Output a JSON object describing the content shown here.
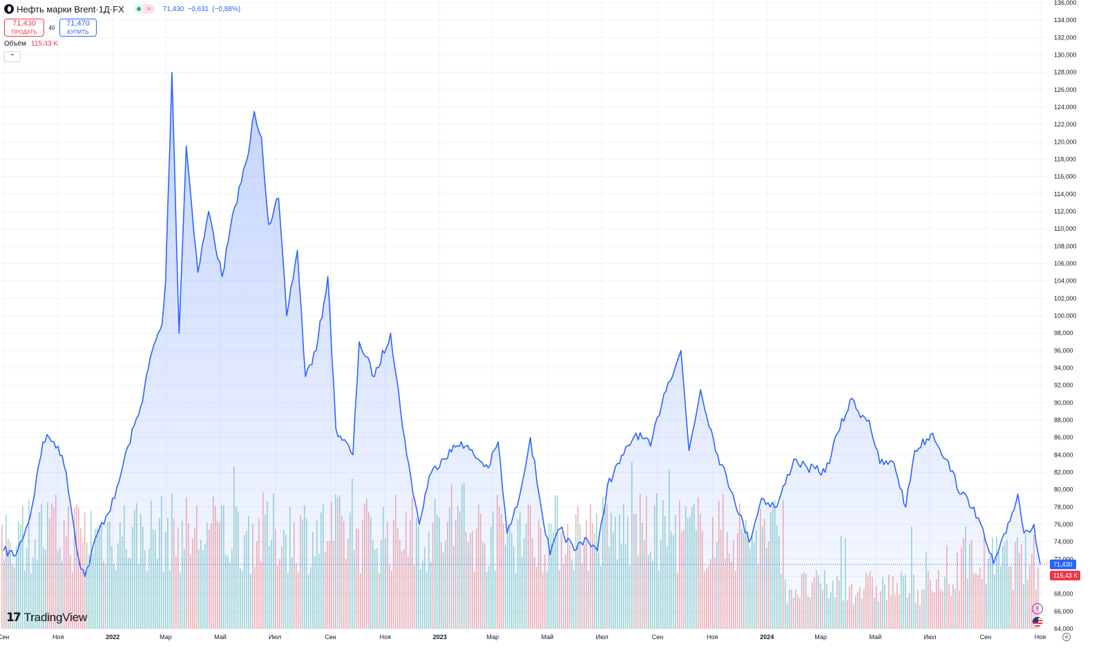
{
  "symbol": {
    "name": "Нефть марки Brent",
    "interval": "1Д",
    "exchange": "FX",
    "title_sep": " · ",
    "last": "71,430",
    "change": "−0,631",
    "change_pct": "(−0,88%)",
    "pill_label": "≈"
  },
  "trade": {
    "sell_price": "71,430",
    "sell_label": "ПРОДАТЬ",
    "spread": "40",
    "buy_price": "71,470",
    "buy_label": "КУПИТЬ"
  },
  "volume_legend": {
    "label": "Объём",
    "value": "115,43 K"
  },
  "branding": {
    "logo_text": "TradingView"
  },
  "icons": [
    "circle-logo-icon",
    "chevron-up-icon",
    "lightning-icon",
    "us-flag-icon",
    "settings-icon"
  ],
  "colors": {
    "line": "#2962ff",
    "area_top": "#c7d6fb",
    "up_volume": "#26a69a",
    "down_volume": "#ef5350",
    "price_tag": "#2962ff",
    "volume_tag": "#f23645",
    "grid": "#f0f3fa"
  },
  "chart_data": {
    "type": "area",
    "series": [
      {
        "name": "Нефть марки Brent",
        "x": [
          "2021-09-01",
          "2021-09-15",
          "2021-10-01",
          "2021-10-15",
          "2021-10-22",
          "2021-11-01",
          "2021-11-10",
          "2021-11-24",
          "2021-12-01",
          "2021-12-15",
          "2022-01-03",
          "2022-01-18",
          "2022-02-01",
          "2022-02-14",
          "2022-02-25",
          "2022-03-01",
          "2022-03-08",
          "2022-03-16",
          "2022-03-24",
          "2022-04-06",
          "2022-04-18",
          "2022-05-03",
          "2022-05-17",
          "2022-06-01",
          "2022-06-08",
          "2022-06-16",
          "2022-06-24",
          "2022-07-05",
          "2022-07-14",
          "2022-07-26",
          "2022-08-04",
          "2022-08-16",
          "2022-08-29",
          "2022-09-07",
          "2022-09-26",
          "2022-10-03",
          "2022-10-20",
          "2022-11-07",
          "2022-11-25",
          "2022-12-09",
          "2022-12-20",
          "2023-01-03",
          "2023-01-25",
          "2023-02-08",
          "2023-02-24",
          "2023-03-07",
          "2023-03-17",
          "2023-03-28",
          "2023-04-12",
          "2023-04-24",
          "2023-05-04",
          "2023-05-15",
          "2023-05-31",
          "2023-06-12",
          "2023-06-26",
          "2023-07-07",
          "2023-07-25",
          "2023-08-08",
          "2023-08-24",
          "2023-09-08",
          "2023-09-27",
          "2023-10-06",
          "2023-10-19",
          "2023-11-07",
          "2023-11-24",
          "2023-12-12",
          "2023-12-26",
          "2024-01-12",
          "2024-01-31",
          "2024-02-15",
          "2024-03-06",
          "2024-03-20",
          "2024-04-05",
          "2024-04-12",
          "2024-04-24",
          "2024-05-06",
          "2024-05-22",
          "2024-06-04",
          "2024-06-14",
          "2024-07-04",
          "2024-07-19",
          "2024-08-05",
          "2024-08-19",
          "2024-09-03",
          "2024-09-10",
          "2024-09-24",
          "2024-10-07",
          "2024-10-14",
          "2024-10-25",
          "2024-11-01"
        ],
        "y": [
          73.0,
          72.5,
          77.0,
          85.5,
          86.0,
          85.0,
          82.0,
          72.0,
          70.0,
          75.0,
          79.0,
          85.0,
          89.5,
          96.0,
          99.0,
          104.0,
          128.0,
          98.0,
          119.5,
          105.0,
          112.0,
          104.5,
          112.5,
          118.5,
          123.5,
          120.5,
          110.5,
          113.5,
          100.0,
          107.5,
          93.0,
          96.0,
          104.5,
          87.0,
          84.0,
          97.0,
          93.0,
          98.0,
          84.0,
          76.0,
          81.5,
          83.5,
          85.5,
          84.0,
          82.5,
          85.5,
          75.0,
          78.0,
          86.0,
          78.0,
          72.5,
          75.5,
          73.0,
          74.5,
          73.0,
          80.5,
          84.0,
          86.5,
          85.0,
          91.0,
          96.0,
          84.5,
          91.5,
          84.0,
          79.5,
          74.0,
          79.0,
          78.0,
          83.5,
          82.5,
          82.0,
          86.5,
          90.5,
          89.0,
          88.0,
          83.0,
          83.0,
          78.0,
          84.5,
          86.5,
          83.5,
          79.5,
          78.0,
          73.5,
          71.5,
          75.0,
          79.5,
          75.0,
          76.0,
          71.4
        ]
      }
    ],
    "volume_series": {
      "name": "Объём",
      "approx_range": [
        35000,
        205000
      ],
      "last": "115,43 K"
    },
    "x_ticks": [
      "Сен",
      "Ноя",
      "2022",
      "Мар",
      "Май",
      "Июл",
      "Сен",
      "Ноя",
      "2023",
      "Мар",
      "Май",
      "Июл",
      "Сен",
      "Ноя",
      "2024",
      "Мар",
      "Май",
      "Июл",
      "Сен",
      "Ноя"
    ],
    "x_tick_dates": [
      "2021-09-01",
      "2021-11-01",
      "2022-01-01",
      "2022-03-01",
      "2022-05-01",
      "2022-07-01",
      "2022-09-01",
      "2022-11-01",
      "2023-01-01",
      "2023-03-01",
      "2023-05-01",
      "2023-07-01",
      "2023-09-01",
      "2023-11-01",
      "2024-01-01",
      "2024-03-01",
      "2024-05-01",
      "2024-07-01",
      "2024-09-01",
      "2024-11-01"
    ],
    "y_ticks": [
      "64,000",
      "66,000",
      "68,000",
      "70,000",
      "72,000",
      "74,000",
      "76,000",
      "78,000",
      "80,000",
      "82,000",
      "84,000",
      "86,000",
      "88,000",
      "90,000",
      "92,000",
      "94,000",
      "96,000",
      "98,000",
      "100,000",
      "102,000",
      "104,000",
      "106,000",
      "108,000",
      "110,000",
      "112,000",
      "114,000",
      "116,000",
      "118,000",
      "120,000",
      "122,000",
      "124,000",
      "126,000",
      "128,000",
      "130,000",
      "132,000",
      "134,000",
      "136,000"
    ],
    "ylim": [
      64,
      136
    ],
    "last_price_label": "71,430",
    "last_volume_label": "115,43 K",
    "grid": true,
    "legend": "top-left"
  }
}
